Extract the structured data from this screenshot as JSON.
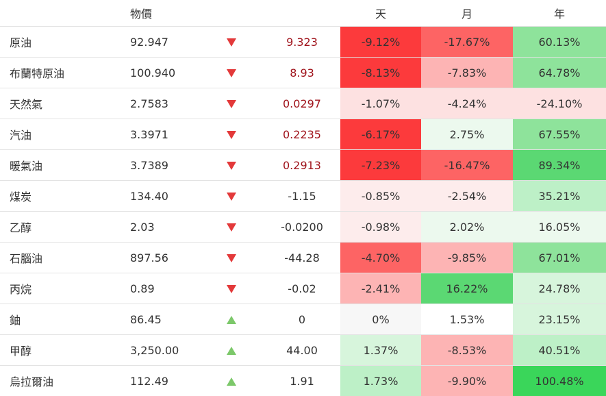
{
  "headers": {
    "name": "",
    "price": "物價",
    "dir": "",
    "change": "",
    "day": "天",
    "month": "月",
    "year": "年"
  },
  "colors": {
    "strong_red": "#fc3a3c",
    "mid_red": "#fd6464",
    "light_red": "#fdb4b4",
    "pale_red": "#fde1e1",
    "faint_red": "#fdecec",
    "neutral": "#f7f7f7",
    "white": "#ffffff",
    "faint_green": "#ecf9ee",
    "pale_green": "#d7f5dc",
    "light_green": "#bdf0c7",
    "mid_green": "#8ee39b",
    "strong_green": "#5bd873",
    "strongest_green": "#3ad65a"
  },
  "rows": [
    {
      "name": "原油",
      "price": "92.947",
      "dir": "down",
      "change": "9.323",
      "change_color": "neg",
      "day": "-9.12%",
      "day_bg": "#fc3a3c",
      "month": "-17.67%",
      "month_bg": "#fd6464",
      "year": "60.13%",
      "year_bg": "#8ee39b"
    },
    {
      "name": "布蘭特原油",
      "price": "100.940",
      "dir": "down",
      "change": "8.93",
      "change_color": "neg",
      "day": "-8.13%",
      "day_bg": "#fc3a3c",
      "month": "-7.83%",
      "month_bg": "#fdb4b4",
      "year": "64.78%",
      "year_bg": "#8ee39b"
    },
    {
      "name": "天然氣",
      "price": "2.7583",
      "dir": "down",
      "change": "0.0297",
      "change_color": "neg",
      "day": "-1.07%",
      "day_bg": "#fde1e1",
      "month": "-4.24%",
      "month_bg": "#fde1e1",
      "year": "-24.10%",
      "year_bg": "#fde1e1"
    },
    {
      "name": "汽油",
      "price": "3.3971",
      "dir": "down",
      "change": "0.2235",
      "change_color": "neg",
      "day": "-6.17%",
      "day_bg": "#fc3a3c",
      "month": "2.75%",
      "month_bg": "#ecf9ee",
      "year": "67.55%",
      "year_bg": "#8ee39b"
    },
    {
      "name": "暖氣油",
      "price": "3.7389",
      "dir": "down",
      "change": "0.2913",
      "change_color": "neg",
      "day": "-7.23%",
      "day_bg": "#fc3a3c",
      "month": "-16.47%",
      "month_bg": "#fd6464",
      "year": "89.34%",
      "year_bg": "#5bd873"
    },
    {
      "name": "煤炭",
      "price": "134.40",
      "dir": "down",
      "change": "-1.15",
      "change_color": "plain",
      "day": "-0.85%",
      "day_bg": "#fdecec",
      "month": "-2.54%",
      "month_bg": "#fdecec",
      "year": "35.21%",
      "year_bg": "#bdf0c7"
    },
    {
      "name": "乙醇",
      "price": "2.03",
      "dir": "down",
      "change": "-0.0200",
      "change_color": "plain",
      "day": "-0.98%",
      "day_bg": "#fdecec",
      "month": "2.02%",
      "month_bg": "#ecf9ee",
      "year": "16.05%",
      "year_bg": "#ecf9ee"
    },
    {
      "name": "石腦油",
      "price": "897.56",
      "dir": "down",
      "change": "-44.28",
      "change_color": "plain",
      "day": "-4.70%",
      "day_bg": "#fd6464",
      "month": "-9.85%",
      "month_bg": "#fdb4b4",
      "year": "67.01%",
      "year_bg": "#8ee39b"
    },
    {
      "name": "丙烷",
      "price": "0.89",
      "dir": "down",
      "change": "-0.02",
      "change_color": "plain",
      "day": "-2.41%",
      "day_bg": "#fdb4b4",
      "month": "16.22%",
      "month_bg": "#5bd873",
      "year": "24.78%",
      "year_bg": "#d7f5dc"
    },
    {
      "name": "鈾",
      "price": "86.45",
      "dir": "up",
      "change": "0",
      "change_color": "plain",
      "day": "0%",
      "day_bg": "#f7f7f7",
      "month": "1.53%",
      "month_bg": "#ffffff",
      "year": "23.15%",
      "year_bg": "#d7f5dc"
    },
    {
      "name": "甲醇",
      "price": "3,250.00",
      "dir": "up",
      "change": "44.00",
      "change_color": "plain",
      "day": "1.37%",
      "day_bg": "#d7f5dc",
      "month": "-8.53%",
      "month_bg": "#fdb4b4",
      "year": "40.51%",
      "year_bg": "#bdf0c7"
    },
    {
      "name": "烏拉爾油",
      "price": "112.49",
      "dir": "up",
      "change": "1.91",
      "change_color": "plain",
      "day": "1.73%",
      "day_bg": "#bdf0c7",
      "month": "-9.90%",
      "month_bg": "#fdb4b4",
      "year": "100.48%",
      "year_bg": "#3ad65a"
    }
  ]
}
